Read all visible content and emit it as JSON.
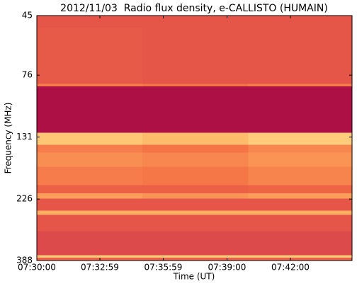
{
  "chart_data": {
    "type": "heatmap",
    "title": "2012/11/03  Radio flux density, e-CALLISTO (HUMAIN)",
    "xlabel": "Time (UT)",
    "ylabel": "Frequency (MHz)",
    "xlim": [
      27000,
      27895
    ],
    "xticks": [
      {
        "value": 27000,
        "label": "07:30:00"
      },
      {
        "value": 27179,
        "label": "07:32:59"
      },
      {
        "value": 27359,
        "label": "07:35:59"
      },
      {
        "value": 27540,
        "label": "07:39:00"
      },
      {
        "value": 27720,
        "label": "07:42:00"
      }
    ],
    "ylim": [
      45,
      388
    ],
    "yticks": [
      45,
      76,
      131,
      226,
      388
    ],
    "y_log": true,
    "y_inverted": true,
    "x_edges": [
      27000,
      27300,
      27600,
      27895
    ],
    "y_edges": [
      45,
      50,
      82,
      84,
      126,
      140,
      150,
      170,
      200,
      215,
      225,
      250,
      260,
      300,
      370,
      378,
      388
    ],
    "z": [
      [
        0.3,
        0.3,
        0.3
      ],
      [
        0.32,
        0.3,
        0.3
      ],
      [
        0.45,
        0.42,
        0.45
      ],
      [
        0.05,
        0.05,
        0.05
      ],
      [
        0.7,
        0.65,
        0.72
      ],
      [
        0.45,
        0.42,
        0.48
      ],
      [
        0.5,
        0.48,
        0.52
      ],
      [
        0.45,
        0.43,
        0.47
      ],
      [
        0.35,
        0.35,
        0.36
      ],
      [
        0.55,
        0.52,
        0.55
      ],
      [
        0.3,
        0.3,
        0.3
      ],
      [
        0.6,
        0.6,
        0.6
      ],
      [
        0.3,
        0.3,
        0.3
      ],
      [
        0.25,
        0.25,
        0.25
      ],
      [
        0.7,
        0.7,
        0.7
      ],
      [
        0.35,
        0.35,
        0.35
      ]
    ],
    "colors": [
      "#9e0142",
      "#d53e4f",
      "#f46d43",
      "#fdae61",
      "#fee08b",
      "#ffffbf"
    ]
  }
}
